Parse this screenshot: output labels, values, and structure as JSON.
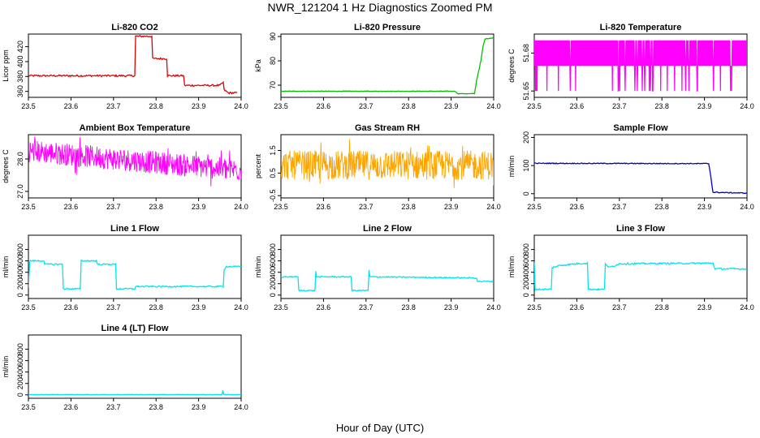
{
  "page": {
    "title": "NWR_121204  1 Hz Diagnostics Zoomed PM",
    "xlabel": "Hour of Day (UTC)"
  },
  "chart_data": [
    {
      "id": "li820-co2",
      "type": "line",
      "title": "Li-820 CO2",
      "ylabel": "Licor ppm",
      "color": "#e00000",
      "xlim": [
        23.5,
        24.0
      ],
      "ylim": [
        352,
        437
      ],
      "xticks": [
        "23.5",
        "23.6",
        "23.7",
        "23.8",
        "23.9",
        "24.0"
      ],
      "yticks": [
        {
          "v": 360,
          "label": "360"
        },
        {
          "v": 380,
          "label": "380"
        },
        {
          "v": 400,
          "label": "400"
        },
        {
          "v": 420,
          "label": "420"
        }
      ],
      "series": [
        {
          "points": [
            [
              23.5,
              381
            ],
            [
              23.75,
              381
            ],
            [
              23.752,
              434
            ],
            [
              23.79,
              434
            ],
            [
              23.792,
              404
            ],
            [
              23.825,
              404
            ],
            [
              23.827,
              381
            ],
            [
              23.865,
              381
            ],
            [
              23.867,
              368
            ],
            [
              23.95,
              368
            ],
            [
              23.958,
              372
            ],
            [
              23.96,
              362
            ],
            [
              23.97,
              358
            ],
            [
              23.99,
              358
            ]
          ],
          "noise": 1.2
        }
      ]
    },
    {
      "id": "li820-pressure",
      "type": "line",
      "title": "Li-820 Pressure",
      "ylabel": "kPa",
      "color": "#00c000",
      "xlim": [
        23.5,
        24.0
      ],
      "ylim": [
        65,
        91
      ],
      "xticks": [
        "23.5",
        "23.6",
        "23.7",
        "23.8",
        "23.9",
        "24.0"
      ],
      "yticks": [
        {
          "v": 70,
          "label": "70"
        },
        {
          "v": 80,
          "label": "80"
        },
        {
          "v": 90,
          "label": "90"
        }
      ],
      "series": [
        {
          "points": [
            [
              23.5,
              67.5
            ],
            [
              23.91,
              67.5
            ],
            [
              23.915,
              66.5
            ],
            [
              23.955,
              66.5
            ],
            [
              23.96,
              72
            ],
            [
              23.97,
              80
            ],
            [
              23.975,
              86
            ],
            [
              23.98,
              89
            ],
            [
              24.0,
              89.5
            ]
          ],
          "noise": 0.1
        }
      ]
    },
    {
      "id": "li820-temperature",
      "type": "spiky",
      "title": "Li-820 Temperature",
      "ylabel": "degrees C",
      "color": "#ff00ff",
      "xlim": [
        23.5,
        24.0
      ],
      "ylim": [
        51.645,
        51.695
      ],
      "xticks": [
        "23.5",
        "23.6",
        "23.7",
        "23.8",
        "23.9",
        "24.0"
      ],
      "yticks": [
        {
          "v": 51.65,
          "label": "51.65"
        },
        {
          "v": 51.68,
          "label": "51.68"
        }
      ],
      "series": [
        {
          "base": 51.68,
          "top": 51.69,
          "low": 51.67,
          "dip": 51.65
        }
      ]
    },
    {
      "id": "ambient-box-temperature",
      "type": "noisy",
      "title": "Ambient Box Temperature",
      "ylabel": "degrees C",
      "color": "#ff00ff",
      "xlim": [
        23.5,
        24.0
      ],
      "ylim": [
        26.8,
        28.75
      ],
      "xticks": [
        "23.5",
        "23.6",
        "23.7",
        "23.8",
        "23.9",
        "24.0"
      ],
      "yticks": [
        {
          "v": 27.0,
          "label": "27.0"
        },
        {
          "v": 28.0,
          "label": "28.0"
        }
      ],
      "series": [
        {
          "start": 28.25,
          "end": 27.65,
          "amp": 0.35
        }
      ]
    },
    {
      "id": "gas-stream-rh",
      "type": "noisy",
      "title": "Gas Stream RH",
      "ylabel": "percent",
      "color": "#ffa500",
      "xlim": [
        23.5,
        24.0
      ],
      "ylim": [
        -0.6,
        2.2
      ],
      "xticks": [
        "23.5",
        "23.6",
        "23.7",
        "23.8",
        "23.9",
        "24.0"
      ],
      "yticks": [
        {
          "v": -0.5,
          "label": "-0.5"
        },
        {
          "v": 0.5,
          "label": "0.5"
        },
        {
          "v": 1.5,
          "label": "1.5"
        }
      ],
      "series": [
        {
          "start": 0.85,
          "end": 0.85,
          "amp": 0.65
        }
      ]
    },
    {
      "id": "sample-flow",
      "type": "line",
      "title": "Sample Flow",
      "ylabel": "ml/min",
      "color": "#0000cc",
      "xlim": [
        23.5,
        24.0
      ],
      "ylim": [
        -15,
        210
      ],
      "xticks": [
        "23.5",
        "23.6",
        "23.7",
        "23.8",
        "23.9",
        "24.0"
      ],
      "yticks": [
        {
          "v": 0,
          "label": "0"
        },
        {
          "v": 100,
          "label": "100"
        },
        {
          "v": 200,
          "label": "200"
        }
      ],
      "series": [
        {
          "points": [
            [
              23.5,
              108
            ],
            [
              23.91,
              107
            ],
            [
              23.915,
              60
            ],
            [
              23.92,
              5
            ],
            [
              24.0,
              2
            ]
          ],
          "noise": 1.5
        }
      ]
    },
    {
      "id": "line1-flow",
      "type": "line",
      "title": "Line 1 Flow",
      "ylabel": "ml/min",
      "color": "#00e5ee",
      "xlim": [
        23.5,
        24.0
      ],
      "ylim": [
        -60,
        1050
      ],
      "xticks": [
        "23.5",
        "23.6",
        "23.7",
        "23.8",
        "23.9",
        "24.0"
      ],
      "yticks": [
        {
          "v": 0,
          "label": "0"
        },
        {
          "v": 200,
          "label": "200"
        },
        {
          "v": 400,
          "label": "400"
        },
        {
          "v": 600,
          "label": "600"
        },
        {
          "v": 800,
          "label": "800"
        }
      ],
      "series": [
        {
          "points": [
            [
              23.5,
              120
            ],
            [
              23.503,
              600
            ],
            [
              23.537,
              600
            ],
            [
              23.538,
              540
            ],
            [
              23.58,
              540
            ],
            [
              23.582,
              110
            ],
            [
              23.622,
              110
            ],
            [
              23.624,
              600
            ],
            [
              23.66,
              600
            ],
            [
              23.662,
              540
            ],
            [
              23.705,
              540
            ],
            [
              23.707,
              110
            ],
            [
              23.75,
              110
            ],
            [
              23.752,
              150
            ],
            [
              23.958,
              150
            ],
            [
              23.96,
              450
            ],
            [
              23.965,
              500
            ],
            [
              24.0,
              500
            ]
          ],
          "noise": 12
        }
      ]
    },
    {
      "id": "line2-flow",
      "type": "line",
      "title": "Line 2 Flow",
      "ylabel": "ml/min",
      "color": "#00e5ee",
      "xlim": [
        23.5,
        24.0
      ],
      "ylim": [
        -60,
        1050
      ],
      "xticks": [
        "23.5",
        "23.6",
        "23.7",
        "23.8",
        "23.9",
        "24.0"
      ],
      "yticks": [
        {
          "v": 0,
          "label": "0"
        },
        {
          "v": 200,
          "label": "200"
        },
        {
          "v": 400,
          "label": "400"
        },
        {
          "v": 600,
          "label": "600"
        },
        {
          "v": 800,
          "label": "800"
        }
      ],
      "series": [
        {
          "points": [
            [
              23.5,
              320
            ],
            [
              23.54,
              320
            ],
            [
              23.542,
              80
            ],
            [
              23.58,
              80
            ],
            [
              23.582,
              420
            ],
            [
              23.584,
              320
            ],
            [
              23.665,
              320
            ],
            [
              23.667,
              80
            ],
            [
              23.705,
              80
            ],
            [
              23.707,
              440
            ],
            [
              23.709,
              320
            ],
            [
              23.96,
              300
            ],
            [
              23.962,
              240
            ],
            [
              24.0,
              240
            ]
          ],
          "noise": 10
        }
      ]
    },
    {
      "id": "line3-flow",
      "type": "line",
      "title": "Line 3 Flow",
      "ylabel": "ml/min",
      "color": "#00e5ee",
      "xlim": [
        23.5,
        24.0
      ],
      "ylim": [
        -60,
        1050
      ],
      "xticks": [
        "23.5",
        "23.6",
        "23.7",
        "23.8",
        "23.9",
        "24.0"
      ],
      "yticks": [
        {
          "v": 0,
          "label": "0"
        },
        {
          "v": 200,
          "label": "200"
        },
        {
          "v": 400,
          "label": "400"
        },
        {
          "v": 600,
          "label": "600"
        },
        {
          "v": 800,
          "label": "800"
        }
      ],
      "series": [
        {
          "points": [
            [
              23.5,
              580
            ],
            [
              23.502,
              100
            ],
            [
              23.54,
              100
            ],
            [
              23.542,
              480
            ],
            [
              23.56,
              520
            ],
            [
              23.6,
              550
            ],
            [
              23.625,
              560
            ],
            [
              23.627,
              100
            ],
            [
              23.665,
              100
            ],
            [
              23.667,
              560
            ],
            [
              23.675,
              480
            ],
            [
              23.69,
              520
            ],
            [
              23.7,
              550
            ],
            [
              23.92,
              560
            ],
            [
              23.925,
              460
            ],
            [
              24.0,
              460
            ]
          ],
          "noise": 14
        }
      ]
    },
    {
      "id": "line4-flow",
      "type": "line",
      "title": "Line 4 (LT) Flow",
      "ylabel": "ml/min",
      "color": "#00e5ee",
      "xlim": [
        23.5,
        24.0
      ],
      "ylim": [
        -60,
        1050
      ],
      "xticks": [
        "23.5",
        "23.6",
        "23.7",
        "23.8",
        "23.9",
        "24.0"
      ],
      "yticks": [
        {
          "v": 0,
          "label": "0"
        },
        {
          "v": 200,
          "label": "200"
        },
        {
          "v": 400,
          "label": "400"
        },
        {
          "v": 600,
          "label": "600"
        },
        {
          "v": 800,
          "label": "800"
        }
      ],
      "series": [
        {
          "points": [
            [
              23.5,
              5
            ],
            [
              23.955,
              5
            ],
            [
              23.957,
              80
            ],
            [
              23.959,
              5
            ],
            [
              24.0,
              5
            ]
          ],
          "noise": 2
        }
      ]
    }
  ]
}
